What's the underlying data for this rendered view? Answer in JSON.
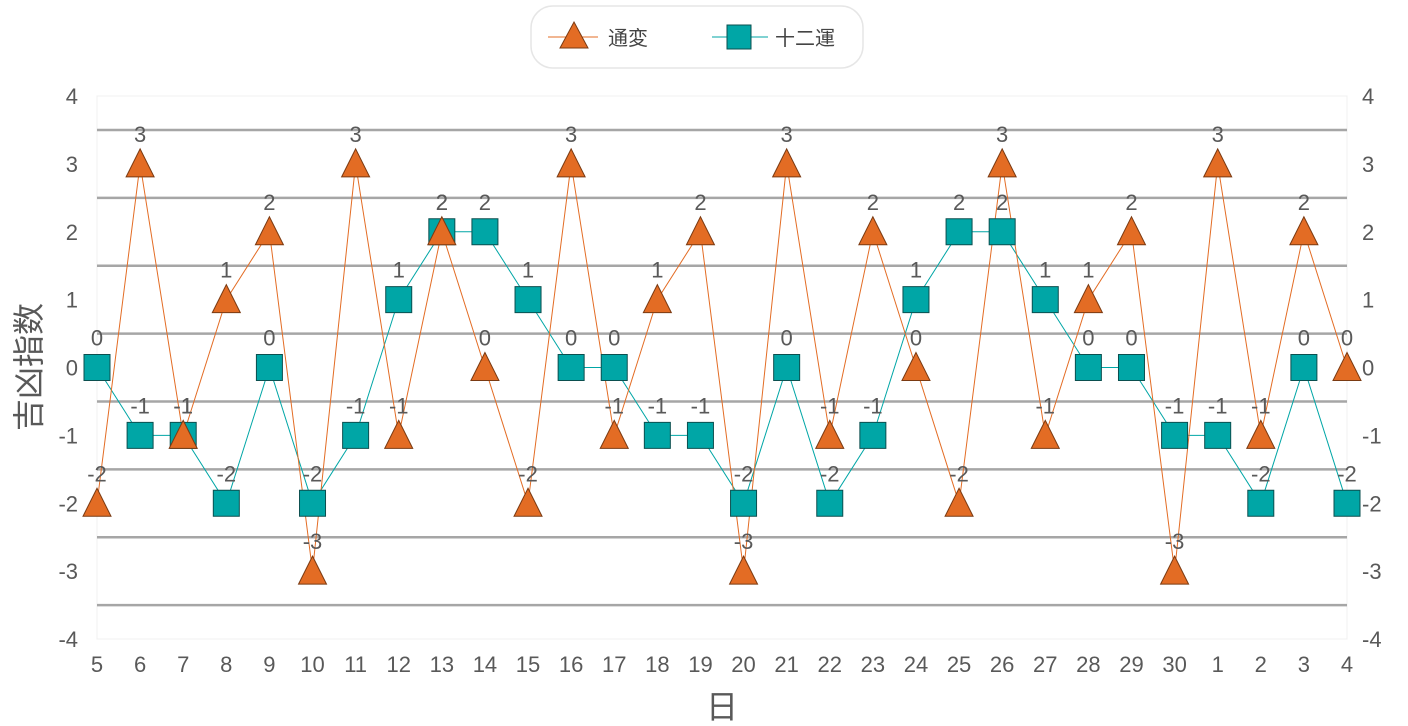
{
  "chart_data": {
    "type": "line",
    "title": "",
    "xlabel": "日",
    "ylabel": "吉凶指数",
    "ylim": [
      -4,
      4
    ],
    "y_ticks": [
      "4",
      "3",
      "2",
      "1",
      "0",
      "-1",
      "-2",
      "-3",
      "-4"
    ],
    "y2_ticks": [
      "4",
      "3",
      "2",
      "1",
      "0",
      "-1",
      "-2",
      "-3",
      "-4"
    ],
    "categories": [
      "5",
      "6",
      "7",
      "8",
      "9",
      "10",
      "11",
      "12",
      "13",
      "14",
      "15",
      "16",
      "17",
      "18",
      "19",
      "20",
      "21",
      "22",
      "23",
      "24",
      "25",
      "26",
      "27",
      "28",
      "29",
      "30",
      "1",
      "2",
      "3",
      "4"
    ],
    "grid": true,
    "legend_position": "top",
    "series": [
      {
        "name": "通変",
        "marker": "triangle",
        "color": "#E36C24",
        "values": [
          -2,
          3,
          -1,
          1,
          2,
          -3,
          3,
          -1,
          2,
          0,
          -2,
          3,
          -1,
          1,
          2,
          -3,
          3,
          -1,
          2,
          0,
          -2,
          3,
          -1,
          1,
          2,
          -3,
          3,
          -1,
          2,
          0
        ]
      },
      {
        "name": "十二運",
        "marker": "square",
        "color": "#00A6A6",
        "values": [
          0,
          -1,
          -1,
          -2,
          0,
          -2,
          -1,
          1,
          2,
          2,
          1,
          0,
          0,
          -1,
          -1,
          -2,
          0,
          -2,
          -1,
          1,
          2,
          2,
          1,
          0,
          0,
          -1,
          -1,
          -2,
          0,
          -2
        ]
      }
    ]
  }
}
